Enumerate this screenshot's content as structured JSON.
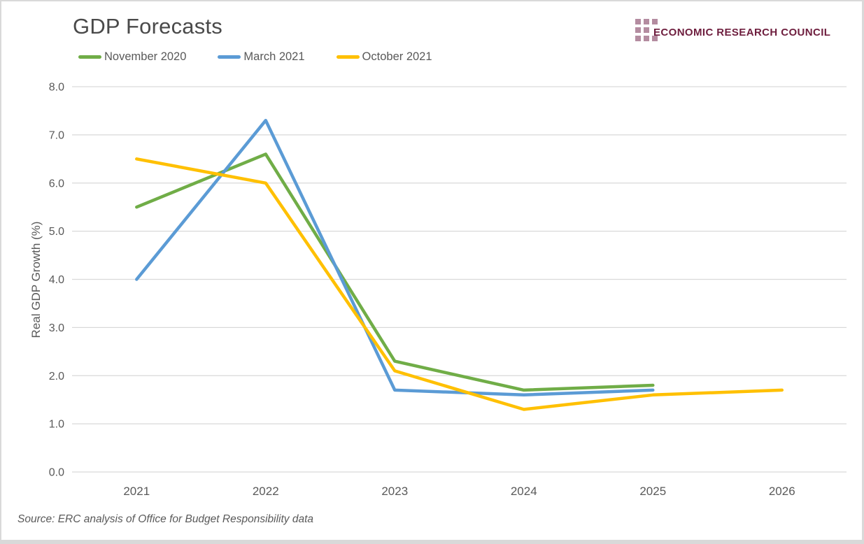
{
  "logo": {
    "text": "ECONOMIC RESEARCH COUNCIL",
    "mark_color": "#b48ca0",
    "text_color": "#6e1e3e"
  },
  "source": {
    "text": "Source: ERC analysis of Office for Budget Responsibility data"
  },
  "chart_data": {
    "type": "line",
    "title": "GDP Forecasts",
    "ylabel": "Real GDP Growth (%)",
    "categories": [
      "2021",
      "2022",
      "2023",
      "2024",
      "2025",
      "2026"
    ],
    "series": [
      {
        "name": "November 2020",
        "color": "#70AD47",
        "values": [
          5.5,
          6.6,
          2.3,
          1.7,
          1.8,
          null
        ]
      },
      {
        "name": "March 2021",
        "color": "#5B9BD5",
        "values": [
          4.0,
          7.3,
          1.7,
          1.6,
          1.7,
          null
        ]
      },
      {
        "name": "October 2021",
        "color": "#FFC000",
        "values": [
          6.5,
          6.0,
          2.1,
          1.3,
          1.6,
          1.7
        ]
      }
    ],
    "ylim": [
      0,
      8
    ],
    "ytick_step": 1,
    "ytick_labels": [
      "0.0",
      "1.0",
      "2.0",
      "3.0",
      "4.0",
      "5.0",
      "6.0",
      "7.0",
      "8.0"
    ],
    "grid": true,
    "gridline_color": "#d9d9d9",
    "legend_position": "top-left"
  }
}
